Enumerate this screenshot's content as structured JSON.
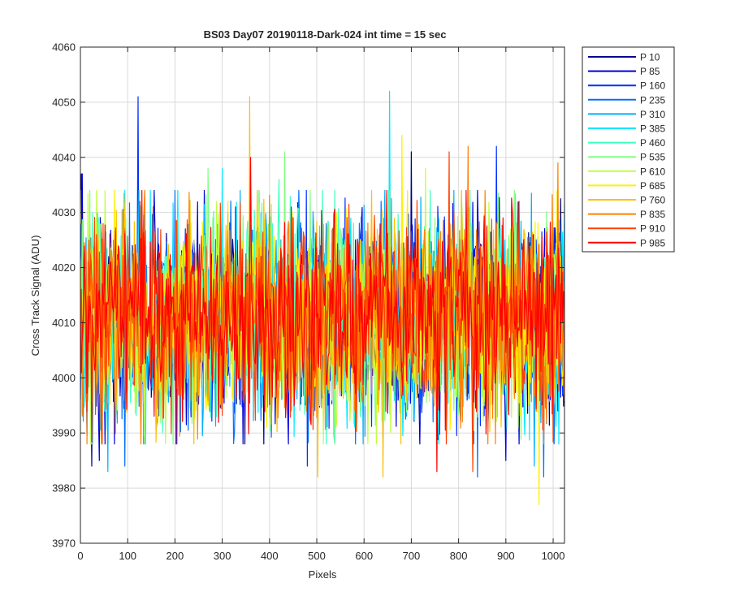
{
  "chart_data": {
    "type": "line",
    "title": "BS03 Day07 20190118-Dark-024 int time = 15 sec",
    "xlabel": "Pixels",
    "ylabel": "Cross Track Signal (ADU)",
    "xlim": [
      0,
      1024
    ],
    "ylim": [
      3970,
      4060
    ],
    "xticks": [
      "0",
      "100",
      "200",
      "300",
      "400",
      "500",
      "600",
      "700",
      "800",
      "900",
      "1000"
    ],
    "yticks": [
      "3970",
      "3980",
      "3990",
      "4000",
      "4010",
      "4020",
      "4030",
      "4040",
      "4050",
      "4060"
    ],
    "grid": true,
    "legend_position": "outside-right-top",
    "series": [
      {
        "name": "P 10",
        "color": "#000090",
        "mean": 4011,
        "std": 9.0,
        "peaks": [
          [
            1,
            4037
          ],
          [
            700,
            4041
          ],
          [
            24,
            3984
          ],
          [
            640,
            3989
          ]
        ]
      },
      {
        "name": "P 85",
        "color": "#0000DD",
        "mean": 4011,
        "std": 9.0,
        "peaks": [
          [
            3,
            4037
          ],
          [
            40,
            3985
          ],
          [
            900,
            3985
          ]
        ]
      },
      {
        "name": "P 160",
        "color": "#0030FF",
        "mean": 4011,
        "std": 9.0,
        "peaks": [
          [
            122,
            4051
          ],
          [
            480,
            3984
          ],
          [
            880,
            4042
          ]
        ]
      },
      {
        "name": "P 235",
        "color": "#0070FF",
        "mean": 4011,
        "std": 9.0,
        "peaks": [
          [
            94,
            3984
          ],
          [
            840,
            3982
          ],
          [
            980,
            3982
          ]
        ]
      },
      {
        "name": "P 310",
        "color": "#00B0FF",
        "mean": 4011,
        "std": 9.0,
        "peaks": [
          [
            58,
            3983
          ],
          [
            960,
            3984
          ]
        ]
      },
      {
        "name": "P 385",
        "color": "#00E8FF",
        "mean": 4011,
        "std": 9.0,
        "peaks": [
          [
            654,
            4052
          ],
          [
            300,
            4038
          ]
        ]
      },
      {
        "name": "P 460",
        "color": "#40FFC0",
        "mean": 4011,
        "std": 9.0,
        "peaks": [
          [
            420,
            4036
          ]
        ]
      },
      {
        "name": "P 535",
        "color": "#80FF80",
        "mean": 4011,
        "std": 9.0,
        "peaks": [
          [
            431,
            4041
          ],
          [
            270,
            4038
          ]
        ]
      },
      {
        "name": "P 610",
        "color": "#C0FF40",
        "mean": 4011,
        "std": 9.0,
        "peaks": [
          [
            730,
            4038
          ]
        ]
      },
      {
        "name": "P 685",
        "color": "#FFF000",
        "mean": 4011,
        "std": 9.0,
        "peaks": [
          [
            680,
            4044
          ],
          [
            969,
            3977
          ]
        ]
      },
      {
        "name": "P 760",
        "color": "#FFC000",
        "mean": 4011,
        "std": 9.0,
        "peaks": [
          [
            358,
            4051
          ],
          [
            502,
            3982
          ],
          [
            640,
            3982
          ]
        ]
      },
      {
        "name": "P 835",
        "color": "#FF8000",
        "mean": 4011,
        "std": 9.0,
        "peaks": [
          [
            820,
            4042
          ],
          [
            1010,
            4039
          ]
        ]
      },
      {
        "name": "P 910",
        "color": "#FF4000",
        "mean": 4011,
        "std": 9.0,
        "peaks": [
          [
            780,
            4041
          ],
          [
            830,
            3983
          ]
        ]
      },
      {
        "name": "P 985",
        "color": "#FF0000",
        "mean": 4011,
        "std": 9.0,
        "peaks": [
          [
            754,
            4041
          ],
          [
            754,
            3983
          ],
          [
            360,
            4040
          ]
        ]
      }
    ]
  }
}
